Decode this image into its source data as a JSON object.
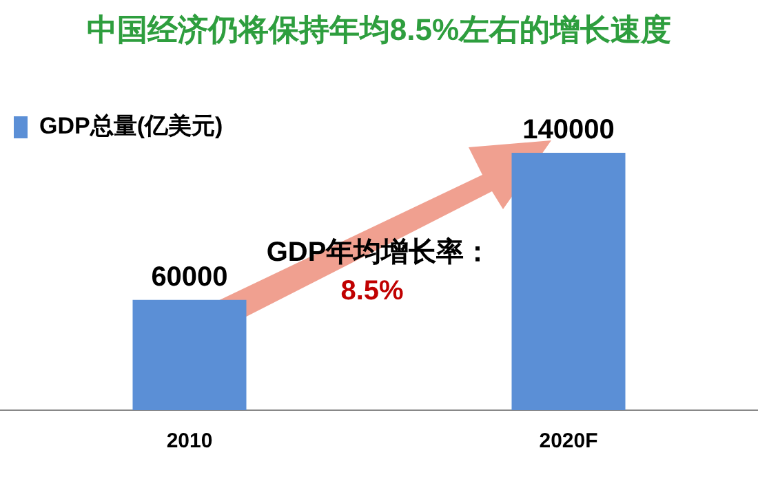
{
  "chart_data": {
    "type": "bar",
    "title": "中国经济仍将保持年均8.5%左右的增长速度",
    "categories": [
      "2010",
      "2020F"
    ],
    "series": [
      {
        "name": "GDP总量(亿美元)",
        "color": "#5b8fd6",
        "values": [
          60000,
          140000
        ]
      }
    ],
    "tick_labels": "x",
    "data_labels": true,
    "legend": "top left",
    "grid": false,
    "annotations": [
      "GDP年均增长率：",
      "8.5%"
    ]
  }
}
